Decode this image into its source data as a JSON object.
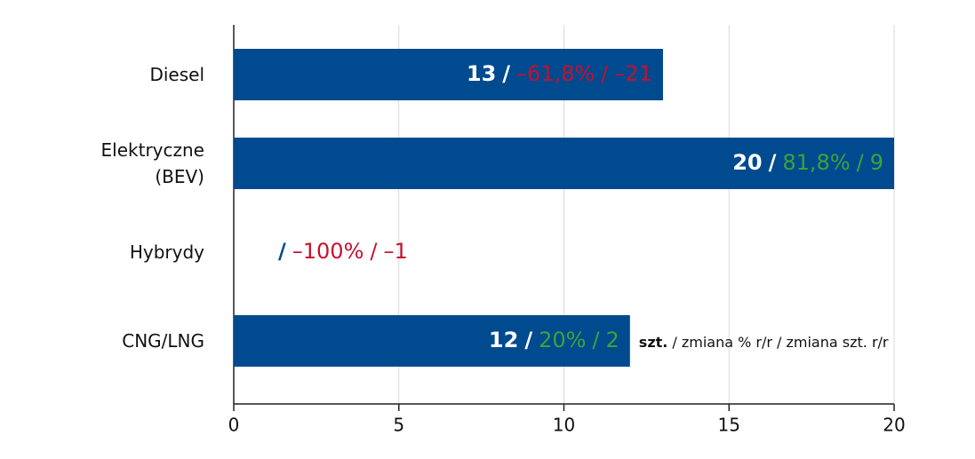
{
  "chart_data": {
    "type": "hbar",
    "categories": [
      "Diesel",
      "Elektryczne (BEV)",
      "Hybrydy",
      "CNG/LNG"
    ],
    "values": [
      13,
      20,
      null,
      12
    ],
    "color": "#004a8f",
    "separator": "/",
    "pct_change_labels": [
      "–61,8%",
      "81,8%",
      "–100%",
      "20%"
    ],
    "unit_change_labels": [
      "–21",
      "9",
      "–1",
      "2"
    ],
    "change_colors": [
      "#c8102e",
      "#3ea33a",
      "#c8102e",
      "#3ea33a"
    ],
    "note": {
      "bold": "szt.",
      "rest": "/ zmiana % r/r / zmiana szt. r/r"
    },
    "xlim": [
      0,
      20
    ],
    "xticks": [
      0,
      5,
      10,
      15,
      20
    ],
    "grid": true
  }
}
